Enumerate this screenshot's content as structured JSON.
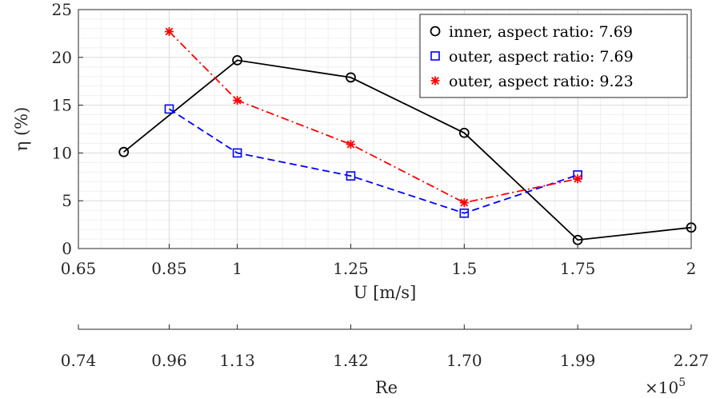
{
  "chart_data": {
    "type": "line",
    "xlabel": "U [m/s]",
    "ylabel": "η (%)",
    "xlim": [
      0.65,
      2.0
    ],
    "ylim": [
      0,
      25
    ],
    "grid": true,
    "minor_grid": true,
    "legend_position": "top-right",
    "x_ticks": [
      0.65,
      0.85,
      1.0,
      1.25,
      1.5,
      1.75,
      2.0
    ],
    "x_tick_labels": [
      "0.65",
      "0.85",
      "1",
      "1.25",
      "1.5",
      "1.75",
      "2"
    ],
    "y_ticks": [
      0,
      5,
      10,
      15,
      20,
      25
    ],
    "y_tick_labels": [
      "0",
      "5",
      "10",
      "15",
      "20",
      "25"
    ],
    "secondary_axis": {
      "label": "Re",
      "tick_labels": [
        "0.74",
        "0.96",
        "1.13",
        "1.42",
        "1.70",
        "1.99",
        "2.27"
      ],
      "exponent_label": "×10",
      "exponent": "5"
    },
    "series": [
      {
        "name": "inner, aspect ratio: 7.69",
        "color": "#000000",
        "marker": "circle",
        "line_style": "solid",
        "x": [
          0.75,
          1.0,
          1.25,
          1.5,
          1.75,
          2.0
        ],
        "y": [
          10.1,
          19.7,
          17.9,
          12.1,
          0.9,
          2.2
        ]
      },
      {
        "name": "outer, aspect ratio: 7.69",
        "color": "#0000ff",
        "marker": "square",
        "line_style": "dashed",
        "x": [
          0.85,
          1.0,
          1.25,
          1.5,
          1.75
        ],
        "y": [
          14.6,
          10.0,
          7.6,
          3.7,
          7.7
        ]
      },
      {
        "name": "outer, aspect ratio: 9.23",
        "color": "#ff0000",
        "marker": "asterisk",
        "line_style": "dashdot",
        "x": [
          0.85,
          1.0,
          1.25,
          1.5,
          1.75
        ],
        "y": [
          22.7,
          15.5,
          10.9,
          4.8,
          7.3
        ]
      }
    ]
  }
}
